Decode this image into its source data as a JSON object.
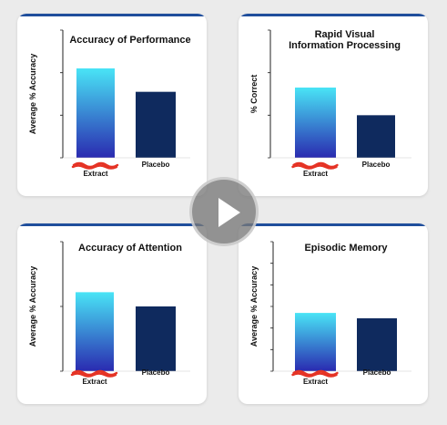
{
  "colors": {
    "panel_top_line": "#1f4e9c",
    "extract_gradient_top": "#49e4f6",
    "extract_gradient_bottom": "#2a2ab0",
    "placebo_bar": "#0f2a5e",
    "redaction_scribble": "#e53325",
    "play_button": "#7a7a7a"
  },
  "play_button": {
    "icon": "play-icon"
  },
  "chart_data": [
    {
      "type": "bar",
      "title": [
        "Accuracy of Performance"
      ],
      "ylabel": "Average % Accuracy",
      "yticks": [
        "",
        "",
        "",
        ""
      ],
      "ylim": [
        0,
        3
      ],
      "categories": [
        "Extract",
        "Placebo"
      ],
      "values": [
        2.1,
        1.55
      ],
      "grid": false,
      "legend": "none"
    },
    {
      "type": "bar",
      "title": [
        "Rapid Visual",
        "Information Processing"
      ],
      "ylabel": "% Correct",
      "yticks": [
        "",
        "",
        "",
        ""
      ],
      "ylim": [
        0,
        3
      ],
      "categories": [
        "Extract",
        "Placebo"
      ],
      "values": [
        1.65,
        1.0
      ],
      "grid": false,
      "legend": "none"
    },
    {
      "type": "bar",
      "title": [
        "Accuracy of Attention"
      ],
      "ylabel": "Average % Accuracy",
      "yticks": [
        "",
        "",
        ""
      ],
      "ylim": [
        0,
        2
      ],
      "categories": [
        "Extract",
        "Placebo"
      ],
      "values": [
        1.22,
        1.0
      ],
      "grid": false,
      "legend": "none"
    },
    {
      "type": "bar",
      "title": [
        "Episodic Memory"
      ],
      "ylabel": "Average % Accuracy",
      "yticks": [
        "",
        "",
        "",
        "",
        "",
        "",
        ""
      ],
      "ylim": [
        0,
        6
      ],
      "categories": [
        "Extract",
        "Placebo"
      ],
      "values": [
        2.7,
        2.45
      ],
      "grid": false,
      "legend": "none"
    }
  ]
}
